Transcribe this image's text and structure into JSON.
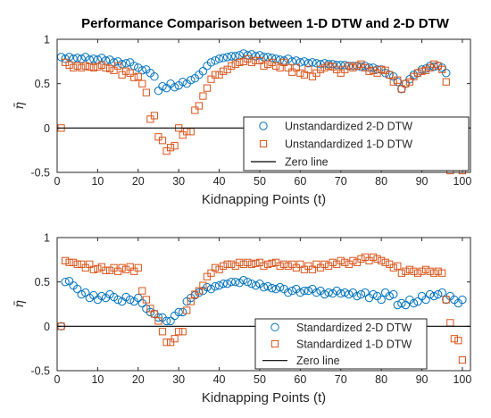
{
  "figure_title": "Performance Comparison between 1-D DTW and 2-D DTW",
  "colors": {
    "blue": "#0072BD",
    "orange": "#D95319",
    "black": "#000000",
    "axes": "#262626"
  },
  "chart_data": [
    {
      "type": "scatter",
      "title": "Performance Comparison between 1-D DTW and 2-D DTW",
      "xlabel": "Kidnapping Points (t)",
      "ylabel": "η̄",
      "xlim": [
        0,
        102
      ],
      "ylim": [
        -0.5,
        1
      ],
      "xticks": [
        "0",
        "10",
        "20",
        "30",
        "40",
        "50",
        "60",
        "70",
        "80",
        "90",
        "100"
      ],
      "yticks": [
        "-0.5",
        "0",
        "0.5",
        "1"
      ],
      "grid": false,
      "legend_position": "bottom-right",
      "series": [
        {
          "name": "Unstandardized 2-D DTW",
          "marker": "circle",
          "color": "#0072BD",
          "x": [
            1,
            2,
            3,
            4,
            5,
            6,
            7,
            8,
            9,
            10,
            11,
            12,
            13,
            14,
            15,
            16,
            17,
            18,
            19,
            20,
            21,
            22,
            23,
            24,
            25,
            26,
            27,
            28,
            29,
            30,
            31,
            32,
            33,
            34,
            35,
            36,
            37,
            38,
            39,
            40,
            41,
            42,
            43,
            44,
            45,
            46,
            47,
            48,
            49,
            50,
            51,
            52,
            53,
            54,
            55,
            56,
            57,
            58,
            59,
            60,
            61,
            62,
            63,
            64,
            65,
            66,
            67,
            68,
            69,
            70,
            71,
            72,
            73,
            74,
            75,
            76,
            77,
            78,
            79,
            80,
            81,
            82,
            83,
            84,
            85,
            86,
            87,
            88,
            89,
            90,
            91,
            92,
            93,
            94,
            95,
            96,
            97,
            98,
            99,
            100
          ],
          "y": [
            0.8,
            0.78,
            0.8,
            0.78,
            0.79,
            0.78,
            0.8,
            0.77,
            0.78,
            0.77,
            0.79,
            0.76,
            0.77,
            0.74,
            0.75,
            0.72,
            0.73,
            0.74,
            0.7,
            0.68,
            0.65,
            0.66,
            0.62,
            0.58,
            0.42,
            0.47,
            0.45,
            0.5,
            0.46,
            0.48,
            0.52,
            0.5,
            0.54,
            0.56,
            0.6,
            0.64,
            0.7,
            0.74,
            0.76,
            0.78,
            0.79,
            0.8,
            0.81,
            0.81,
            0.82,
            0.84,
            0.82,
            0.83,
            0.81,
            0.82,
            0.8,
            0.8,
            0.79,
            0.78,
            0.77,
            0.76,
            0.78,
            0.75,
            0.76,
            0.74,
            0.75,
            0.73,
            0.74,
            0.73,
            0.72,
            0.73,
            0.72,
            0.72,
            0.71,
            0.71,
            0.71,
            0.7,
            0.7,
            0.7,
            0.69,
            0.7,
            0.68,
            0.68,
            0.66,
            0.66,
            0.62,
            0.6,
            0.58,
            0.52,
            0.44,
            0.5,
            0.55,
            0.6,
            0.62,
            0.66,
            0.67,
            0.7,
            0.69,
            0.7,
            0.68,
            0.62,
            -0.1,
            0.08,
            -0.12,
            -0.1
          ]
        },
        {
          "name": "Unstandardized 1-D DTW",
          "marker": "square",
          "color": "#D95319",
          "x": [
            1,
            2,
            3,
            4,
            5,
            6,
            7,
            8,
            9,
            10,
            11,
            12,
            13,
            14,
            15,
            16,
            17,
            18,
            19,
            20,
            21,
            22,
            23,
            24,
            25,
            26,
            27,
            28,
            29,
            30,
            31,
            32,
            33,
            34,
            35,
            36,
            37,
            38,
            39,
            40,
            41,
            42,
            43,
            44,
            45,
            46,
            47,
            48,
            49,
            50,
            51,
            52,
            53,
            54,
            55,
            56,
            57,
            58,
            59,
            60,
            61,
            62,
            63,
            64,
            65,
            66,
            67,
            68,
            69,
            70,
            71,
            72,
            73,
            74,
            75,
            76,
            77,
            78,
            79,
            80,
            81,
            82,
            83,
            84,
            85,
            86,
            87,
            88,
            89,
            90,
            91,
            92,
            93,
            94,
            95,
            96,
            97,
            98,
            99,
            100
          ],
          "y": [
            0.0,
            0.74,
            0.71,
            0.68,
            0.7,
            0.68,
            0.7,
            0.69,
            0.68,
            0.69,
            0.71,
            0.68,
            0.67,
            0.65,
            0.7,
            0.6,
            0.64,
            0.62,
            0.57,
            0.58,
            0.5,
            0.4,
            0.1,
            0.14,
            -0.1,
            -0.14,
            -0.26,
            -0.22,
            -0.2,
            0.0,
            -0.08,
            -0.04,
            -0.04,
            0.2,
            0.25,
            0.36,
            0.45,
            0.55,
            0.6,
            0.6,
            0.64,
            0.66,
            0.7,
            0.72,
            0.74,
            0.75,
            0.78,
            0.74,
            0.76,
            0.76,
            0.7,
            0.72,
            0.74,
            0.7,
            0.68,
            0.74,
            0.68,
            0.63,
            0.68,
            0.62,
            0.6,
            0.66,
            0.58,
            0.62,
            0.66,
            0.68,
            0.7,
            0.69,
            0.66,
            0.62,
            0.66,
            0.7,
            0.68,
            0.7,
            0.72,
            0.68,
            0.64,
            0.65,
            0.62,
            0.66,
            0.65,
            0.6,
            0.52,
            0.54,
            0.44,
            0.5,
            0.52,
            0.58,
            0.62,
            0.64,
            0.65,
            0.68,
            0.72,
            0.7,
            0.66,
            0.52,
            -0.48,
            -0.14,
            -0.02,
            -0.48
          ]
        },
        {
          "name": "Zero line",
          "type": "line",
          "color": "#000000",
          "x": [
            0,
            102
          ],
          "y": [
            0,
            0
          ]
        }
      ]
    },
    {
      "type": "scatter",
      "title": "",
      "xlabel": "Kidnapping Points (t)",
      "ylabel": "η̄",
      "xlim": [
        0,
        102
      ],
      "ylim": [
        -0.5,
        1
      ],
      "xticks": [
        "0",
        "10",
        "20",
        "30",
        "40",
        "50",
        "60",
        "70",
        "80",
        "90",
        "100"
      ],
      "yticks": [
        "-0.5",
        "0",
        "0.5",
        "1"
      ],
      "grid": false,
      "legend_position": "bottom-right",
      "series": [
        {
          "name": "Standardized 2-D DTW",
          "marker": "circle",
          "color": "#0072BD",
          "x": [
            1,
            2,
            3,
            4,
            5,
            6,
            7,
            8,
            9,
            10,
            11,
            12,
            13,
            14,
            15,
            16,
            17,
            18,
            19,
            20,
            21,
            22,
            23,
            24,
            25,
            26,
            27,
            28,
            29,
            30,
            31,
            32,
            33,
            34,
            35,
            36,
            37,
            38,
            39,
            40,
            41,
            42,
            43,
            44,
            45,
            46,
            47,
            48,
            49,
            50,
            51,
            52,
            53,
            54,
            55,
            56,
            57,
            58,
            59,
            60,
            61,
            62,
            63,
            64,
            65,
            66,
            67,
            68,
            69,
            70,
            71,
            72,
            73,
            74,
            75,
            76,
            77,
            78,
            79,
            80,
            81,
            82,
            83,
            84,
            85,
            86,
            87,
            88,
            89,
            90,
            91,
            92,
            93,
            94,
            95,
            96,
            97,
            98,
            99,
            100
          ],
          "y": [
            0.0,
            0.5,
            0.51,
            0.46,
            0.42,
            0.36,
            0.38,
            0.32,
            0.35,
            0.3,
            0.34,
            0.32,
            0.36,
            0.33,
            0.3,
            0.28,
            0.33,
            0.3,
            0.28,
            0.32,
            0.26,
            0.2,
            0.16,
            0.14,
            0.1,
            0.1,
            0.06,
            0.06,
            0.12,
            0.16,
            0.16,
            0.28,
            0.32,
            0.35,
            0.38,
            0.4,
            0.44,
            0.42,
            0.45,
            0.46,
            0.48,
            0.48,
            0.5,
            0.5,
            0.49,
            0.52,
            0.5,
            0.48,
            0.46,
            0.48,
            0.44,
            0.45,
            0.43,
            0.42,
            0.44,
            0.42,
            0.38,
            0.4,
            0.42,
            0.38,
            0.4,
            0.4,
            0.42,
            0.38,
            0.4,
            0.36,
            0.38,
            0.37,
            0.4,
            0.37,
            0.38,
            0.36,
            0.38,
            0.34,
            0.36,
            0.38,
            0.32,
            0.36,
            0.34,
            0.3,
            0.38,
            0.34,
            0.36,
            0.24,
            0.26,
            0.24,
            0.3,
            0.26,
            0.28,
            0.34,
            0.3,
            0.36,
            0.34,
            0.36,
            0.38,
            0.3,
            0.34,
            0.3,
            0.26,
            0.3
          ]
        },
        {
          "name": "Standardized 1-D DTW",
          "marker": "square",
          "color": "#D95319",
          "x": [
            1,
            2,
            3,
            4,
            5,
            6,
            7,
            8,
            9,
            10,
            11,
            12,
            13,
            14,
            15,
            16,
            17,
            18,
            19,
            20,
            21,
            22,
            23,
            24,
            25,
            26,
            27,
            28,
            29,
            30,
            31,
            32,
            33,
            34,
            35,
            36,
            37,
            38,
            39,
            40,
            41,
            42,
            43,
            44,
            45,
            46,
            47,
            48,
            49,
            50,
            51,
            52,
            53,
            54,
            55,
            56,
            57,
            58,
            59,
            60,
            61,
            62,
            63,
            64,
            65,
            66,
            67,
            68,
            69,
            70,
            71,
            72,
            73,
            74,
            75,
            76,
            77,
            78,
            79,
            80,
            81,
            82,
            83,
            84,
            85,
            86,
            87,
            88,
            89,
            90,
            91,
            92,
            93,
            94,
            95,
            96,
            97,
            98,
            99,
            100
          ],
          "y": [
            0.0,
            0.74,
            0.72,
            0.72,
            0.7,
            0.7,
            0.66,
            0.7,
            0.64,
            0.65,
            0.67,
            0.63,
            0.63,
            0.66,
            0.62,
            0.66,
            0.64,
            0.67,
            0.62,
            0.66,
            0.4,
            0.3,
            0.2,
            0.14,
            0.06,
            -0.06,
            -0.18,
            -0.18,
            -0.14,
            -0.06,
            -0.06,
            0.18,
            0.28,
            0.36,
            0.4,
            0.46,
            0.56,
            0.6,
            0.66,
            0.64,
            0.68,
            0.7,
            0.7,
            0.68,
            0.72,
            0.7,
            0.72,
            0.7,
            0.71,
            0.72,
            0.68,
            0.7,
            0.71,
            0.72,
            0.68,
            0.7,
            0.68,
            0.7,
            0.66,
            0.7,
            0.64,
            0.68,
            0.64,
            0.7,
            0.66,
            0.7,
            0.68,
            0.72,
            0.7,
            0.74,
            0.72,
            0.7,
            0.74,
            0.72,
            0.76,
            0.78,
            0.74,
            0.78,
            0.76,
            0.74,
            0.72,
            0.7,
            0.66,
            0.68,
            0.6,
            0.62,
            0.64,
            0.62,
            0.6,
            0.62,
            0.64,
            0.62,
            0.6,
            0.62,
            0.6,
            0.3,
            0.04,
            -0.14,
            -0.16,
            -0.38
          ]
        },
        {
          "name": "Zero line",
          "type": "line",
          "color": "#000000",
          "x": [
            0,
            102
          ],
          "y": [
            0,
            0
          ]
        }
      ]
    }
  ]
}
